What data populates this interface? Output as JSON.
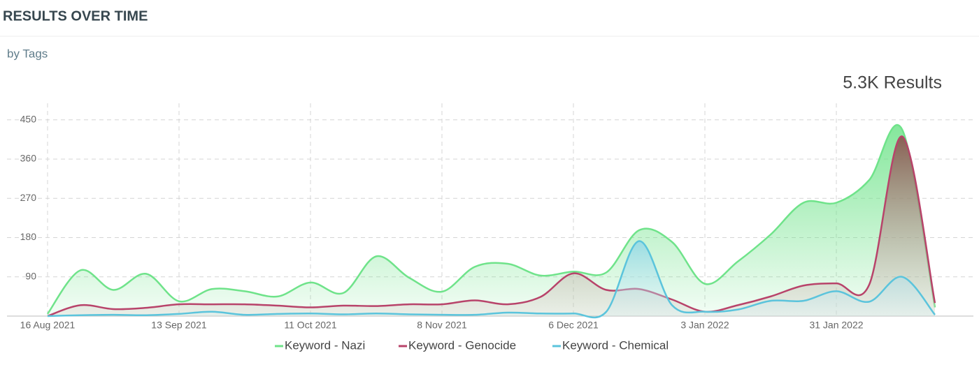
{
  "chart_data": {
    "type": "area",
    "title": "RESULTS OVER TIME",
    "subtitle": "by Tags",
    "annotation": "5.3K Results",
    "categories": [
      "16 Aug 2021",
      null,
      null,
      null,
      "13 Sep 2021",
      null,
      null,
      null,
      "11 Oct 2021",
      null,
      null,
      null,
      "8 Nov 2021",
      null,
      null,
      null,
      "6 Dec 2021",
      null,
      null,
      null,
      "3 Jan 2022",
      null,
      null,
      null,
      "31 Jan 2022",
      null,
      null,
      null
    ],
    "series": [
      {
        "name": "Keyword - Nazi",
        "color": "#6fe38a",
        "values": [
          5,
          105,
          60,
          97,
          34,
          62,
          57,
          45,
          77,
          53,
          137,
          88,
          56,
          113,
          120,
          93,
          102,
          100,
          197,
          170,
          74,
          125,
          187,
          260,
          260,
          312,
          428,
          20
        ]
      },
      {
        "name": "Keyword - Genocide",
        "color": "#b8436a",
        "values": [
          0,
          25,
          16,
          19,
          27,
          27,
          27,
          24,
          20,
          24,
          23,
          27,
          27,
          36,
          27,
          44,
          98,
          60,
          62,
          38,
          10,
          25,
          45,
          70,
          75,
          72,
          412,
          30
        ]
      },
      {
        "name": "Keyword - Chemical",
        "color": "#5bc4dc",
        "values": [
          0,
          2,
          3,
          2,
          5,
          10,
          3,
          5,
          6,
          4,
          6,
          4,
          3,
          3,
          8,
          6,
          6,
          10,
          172,
          25,
          10,
          15,
          35,
          35,
          57,
          33,
          90,
          3
        ]
      }
    ],
    "ylim": [
      0,
      480
    ],
    "yticks": [
      90,
      180,
      270,
      360,
      450
    ],
    "grid": true,
    "legend": "bottom"
  }
}
